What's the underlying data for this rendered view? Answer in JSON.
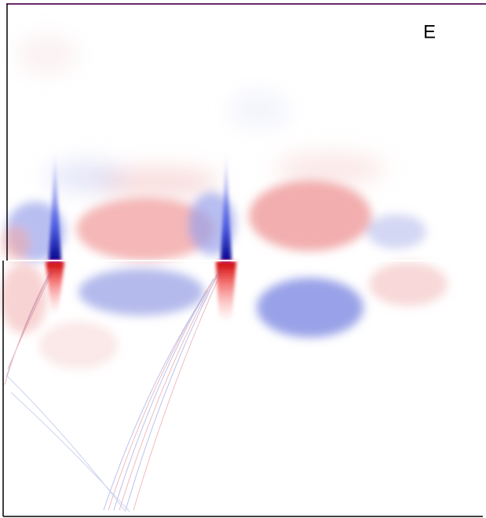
{
  "panel_label": "E"
}
